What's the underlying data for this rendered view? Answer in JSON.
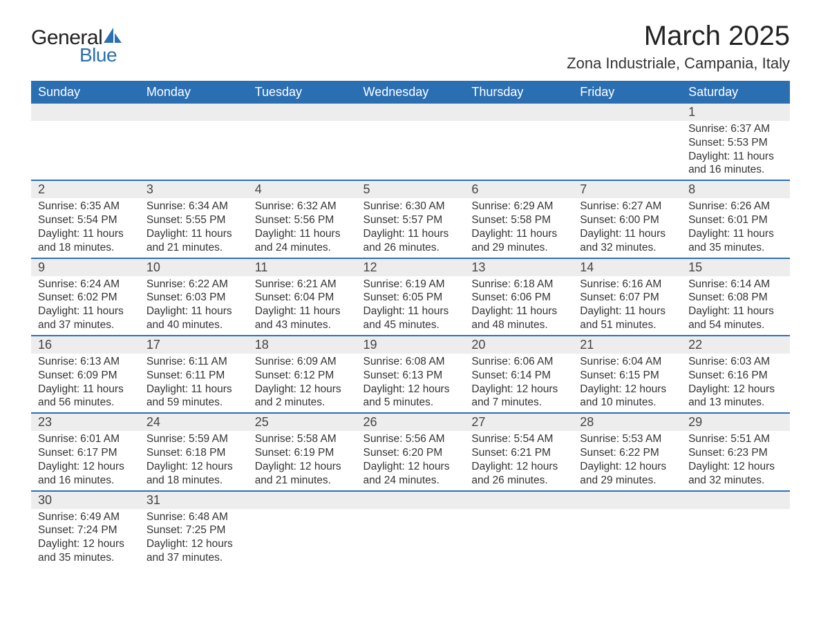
{
  "logo": {
    "text_general": "General",
    "text_blue": "Blue",
    "sail_color": "#2b6fb3"
  },
  "title": "March 2025",
  "location": "Zona Industriale, Campania, Italy",
  "colors": {
    "header_bg": "#2b6fb3",
    "header_text": "#ffffff",
    "row_divider": "#2b6fb3",
    "daynum_bg": "#ededed",
    "body_text": "#333333",
    "page_bg": "#ffffff"
  },
  "typography": {
    "title_fontsize": 40,
    "location_fontsize": 22,
    "weekday_fontsize": 18,
    "daynum_fontsize": 18,
    "body_fontsize": 15.5
  },
  "calendar": {
    "type": "table",
    "weekday_labels": [
      "Sunday",
      "Monday",
      "Tuesday",
      "Wednesday",
      "Thursday",
      "Friday",
      "Saturday"
    ],
    "weeks": [
      [
        {
          "empty": true
        },
        {
          "empty": true
        },
        {
          "empty": true
        },
        {
          "empty": true
        },
        {
          "empty": true
        },
        {
          "empty": true
        },
        {
          "day": "1",
          "sunrise": "Sunrise: 6:37 AM",
          "sunset": "Sunset: 5:53 PM",
          "daylight": "Daylight: 11 hours and 16 minutes."
        }
      ],
      [
        {
          "day": "2",
          "sunrise": "Sunrise: 6:35 AM",
          "sunset": "Sunset: 5:54 PM",
          "daylight": "Daylight: 11 hours and 18 minutes."
        },
        {
          "day": "3",
          "sunrise": "Sunrise: 6:34 AM",
          "sunset": "Sunset: 5:55 PM",
          "daylight": "Daylight: 11 hours and 21 minutes."
        },
        {
          "day": "4",
          "sunrise": "Sunrise: 6:32 AM",
          "sunset": "Sunset: 5:56 PM",
          "daylight": "Daylight: 11 hours and 24 minutes."
        },
        {
          "day": "5",
          "sunrise": "Sunrise: 6:30 AM",
          "sunset": "Sunset: 5:57 PM",
          "daylight": "Daylight: 11 hours and 26 minutes."
        },
        {
          "day": "6",
          "sunrise": "Sunrise: 6:29 AM",
          "sunset": "Sunset: 5:58 PM",
          "daylight": "Daylight: 11 hours and 29 minutes."
        },
        {
          "day": "7",
          "sunrise": "Sunrise: 6:27 AM",
          "sunset": "Sunset: 6:00 PM",
          "daylight": "Daylight: 11 hours and 32 minutes."
        },
        {
          "day": "8",
          "sunrise": "Sunrise: 6:26 AM",
          "sunset": "Sunset: 6:01 PM",
          "daylight": "Daylight: 11 hours and 35 minutes."
        }
      ],
      [
        {
          "day": "9",
          "sunrise": "Sunrise: 6:24 AM",
          "sunset": "Sunset: 6:02 PM",
          "daylight": "Daylight: 11 hours and 37 minutes."
        },
        {
          "day": "10",
          "sunrise": "Sunrise: 6:22 AM",
          "sunset": "Sunset: 6:03 PM",
          "daylight": "Daylight: 11 hours and 40 minutes."
        },
        {
          "day": "11",
          "sunrise": "Sunrise: 6:21 AM",
          "sunset": "Sunset: 6:04 PM",
          "daylight": "Daylight: 11 hours and 43 minutes."
        },
        {
          "day": "12",
          "sunrise": "Sunrise: 6:19 AM",
          "sunset": "Sunset: 6:05 PM",
          "daylight": "Daylight: 11 hours and 45 minutes."
        },
        {
          "day": "13",
          "sunrise": "Sunrise: 6:18 AM",
          "sunset": "Sunset: 6:06 PM",
          "daylight": "Daylight: 11 hours and 48 minutes."
        },
        {
          "day": "14",
          "sunrise": "Sunrise: 6:16 AM",
          "sunset": "Sunset: 6:07 PM",
          "daylight": "Daylight: 11 hours and 51 minutes."
        },
        {
          "day": "15",
          "sunrise": "Sunrise: 6:14 AM",
          "sunset": "Sunset: 6:08 PM",
          "daylight": "Daylight: 11 hours and 54 minutes."
        }
      ],
      [
        {
          "day": "16",
          "sunrise": "Sunrise: 6:13 AM",
          "sunset": "Sunset: 6:09 PM",
          "daylight": "Daylight: 11 hours and 56 minutes."
        },
        {
          "day": "17",
          "sunrise": "Sunrise: 6:11 AM",
          "sunset": "Sunset: 6:11 PM",
          "daylight": "Daylight: 11 hours and 59 minutes."
        },
        {
          "day": "18",
          "sunrise": "Sunrise: 6:09 AM",
          "sunset": "Sunset: 6:12 PM",
          "daylight": "Daylight: 12 hours and 2 minutes."
        },
        {
          "day": "19",
          "sunrise": "Sunrise: 6:08 AM",
          "sunset": "Sunset: 6:13 PM",
          "daylight": "Daylight: 12 hours and 5 minutes."
        },
        {
          "day": "20",
          "sunrise": "Sunrise: 6:06 AM",
          "sunset": "Sunset: 6:14 PM",
          "daylight": "Daylight: 12 hours and 7 minutes."
        },
        {
          "day": "21",
          "sunrise": "Sunrise: 6:04 AM",
          "sunset": "Sunset: 6:15 PM",
          "daylight": "Daylight: 12 hours and 10 minutes."
        },
        {
          "day": "22",
          "sunrise": "Sunrise: 6:03 AM",
          "sunset": "Sunset: 6:16 PM",
          "daylight": "Daylight: 12 hours and 13 minutes."
        }
      ],
      [
        {
          "day": "23",
          "sunrise": "Sunrise: 6:01 AM",
          "sunset": "Sunset: 6:17 PM",
          "daylight": "Daylight: 12 hours and 16 minutes."
        },
        {
          "day": "24",
          "sunrise": "Sunrise: 5:59 AM",
          "sunset": "Sunset: 6:18 PM",
          "daylight": "Daylight: 12 hours and 18 minutes."
        },
        {
          "day": "25",
          "sunrise": "Sunrise: 5:58 AM",
          "sunset": "Sunset: 6:19 PM",
          "daylight": "Daylight: 12 hours and 21 minutes."
        },
        {
          "day": "26",
          "sunrise": "Sunrise: 5:56 AM",
          "sunset": "Sunset: 6:20 PM",
          "daylight": "Daylight: 12 hours and 24 minutes."
        },
        {
          "day": "27",
          "sunrise": "Sunrise: 5:54 AM",
          "sunset": "Sunset: 6:21 PM",
          "daylight": "Daylight: 12 hours and 26 minutes."
        },
        {
          "day": "28",
          "sunrise": "Sunrise: 5:53 AM",
          "sunset": "Sunset: 6:22 PM",
          "daylight": "Daylight: 12 hours and 29 minutes."
        },
        {
          "day": "29",
          "sunrise": "Sunrise: 5:51 AM",
          "sunset": "Sunset: 6:23 PM",
          "daylight": "Daylight: 12 hours and 32 minutes."
        }
      ],
      [
        {
          "day": "30",
          "sunrise": "Sunrise: 6:49 AM",
          "sunset": "Sunset: 7:24 PM",
          "daylight": "Daylight: 12 hours and 35 minutes."
        },
        {
          "day": "31",
          "sunrise": "Sunrise: 6:48 AM",
          "sunset": "Sunset: 7:25 PM",
          "daylight": "Daylight: 12 hours and 37 minutes."
        },
        {
          "empty": true
        },
        {
          "empty": true
        },
        {
          "empty": true
        },
        {
          "empty": true
        },
        {
          "empty": true
        }
      ]
    ]
  }
}
